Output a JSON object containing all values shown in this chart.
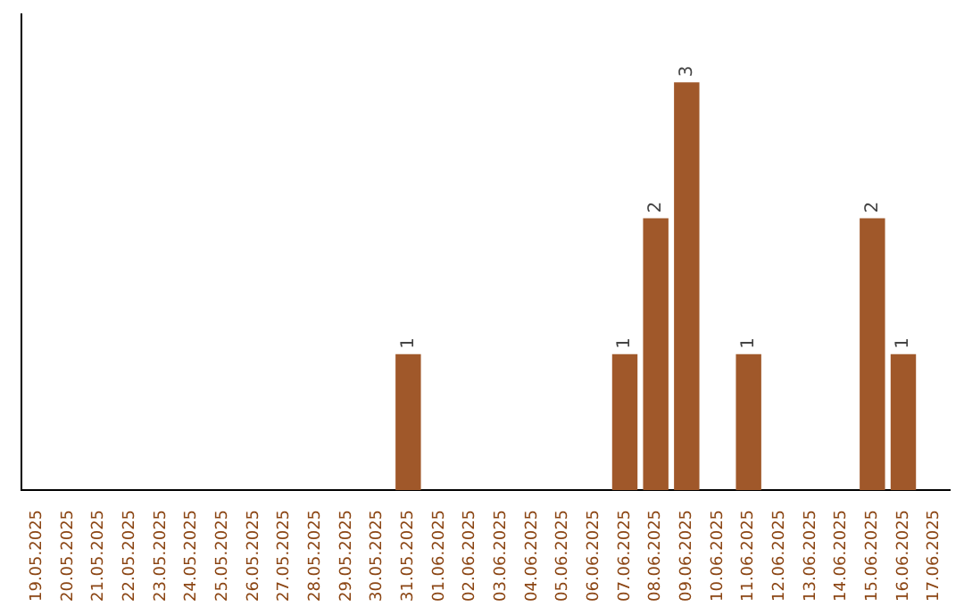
{
  "chart_data": {
    "type": "bar",
    "categories": [
      "19.05.2025",
      "20.05.2025",
      "21.05.2025",
      "22.05.2025",
      "23.05.2025",
      "24.05.2025",
      "25.05.2025",
      "26.05.2025",
      "27.05.2025",
      "28.05.2025",
      "29.05.2025",
      "30.05.2025",
      "31.05.2025",
      "01.06.2025",
      "02.06.2025",
      "03.06.2025",
      "04.06.2025",
      "05.06.2025",
      "06.06.2025",
      "07.06.2025",
      "08.06.2025",
      "09.06.2025",
      "10.06.2025",
      "11.06.2025",
      "12.06.2025",
      "13.06.2025",
      "14.06.2025",
      "15.06.2025",
      "16.06.2025",
      "17.06.2025"
    ],
    "values": [
      null,
      null,
      null,
      null,
      null,
      null,
      null,
      null,
      null,
      null,
      null,
      null,
      1,
      null,
      null,
      null,
      null,
      null,
      null,
      1,
      2,
      3,
      null,
      1,
      null,
      null,
      null,
      2,
      1,
      null
    ],
    "data_labels": true,
    "color": "#a0582a",
    "grid": false,
    "legend": false,
    "tick_labels": "x"
  }
}
